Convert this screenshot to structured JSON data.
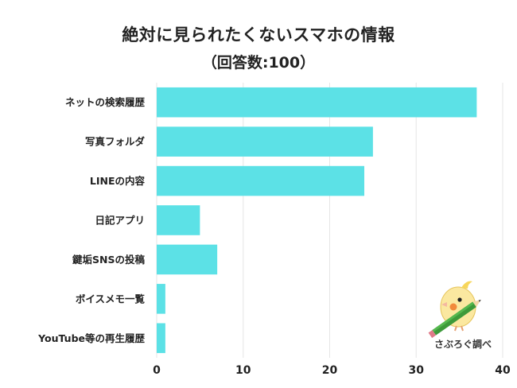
{
  "chart_data": {
    "type": "bar",
    "orientation": "horizontal",
    "title": "絶対に見られたくないスマホの情報",
    "subtitle": "（回答数:100）",
    "categories": [
      "ネットの検索履歴",
      "写真フォルダ",
      "LINEの内容",
      "日記アプリ",
      "鍵垢SNSの投稿",
      "ボイスメモ一覧",
      "YouTube等の再生履歴"
    ],
    "values": [
      37,
      25,
      24,
      5,
      7,
      1,
      1
    ],
    "xlim": [
      0,
      40
    ],
    "xticks": [
      "0",
      "10",
      "20",
      "30",
      "40"
    ],
    "bar_color": "#5ce1e6",
    "grid": "vertical",
    "grid_color": "#e6e6e6",
    "xlabel": "",
    "ylabel": ""
  },
  "logo": {
    "text": "さぶろぐ調べ",
    "icon": "bird-with-pencil-icon"
  }
}
